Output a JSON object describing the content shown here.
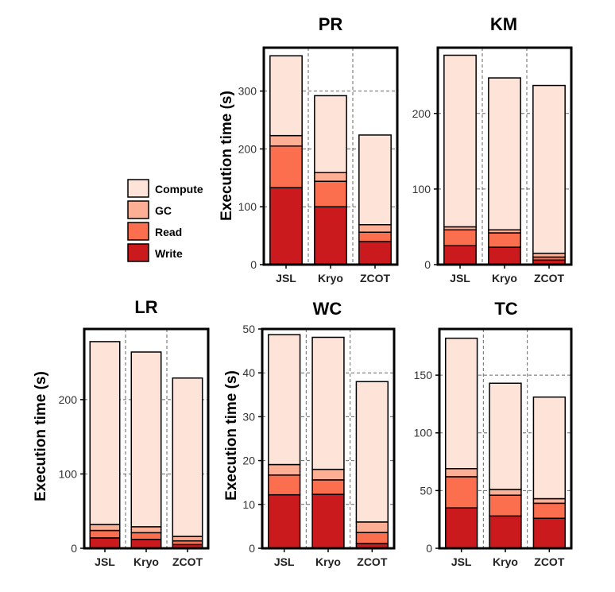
{
  "colors": {
    "Compute": "#fee3d8",
    "GC": "#fcaf94",
    "Read": "#fb6e4e",
    "Write": "#cb1a1d"
  },
  "legend": [
    "Compute",
    "GC",
    "Read",
    "Write"
  ],
  "y_label": "Execution time (s)",
  "chart_data": [
    {
      "type": "bar",
      "stacked": true,
      "title": "PR",
      "categories": [
        "JSL",
        "Kryo",
        "ZCOT"
      ],
      "ylabel": "Execution time (s)",
      "ylim": [
        0,
        375
      ],
      "yticks": [
        0,
        100,
        200,
        300
      ],
      "series": [
        {
          "name": "Write",
          "values": [
            133,
            100,
            40
          ]
        },
        {
          "name": "Read",
          "values": [
            72,
            44,
            16
          ]
        },
        {
          "name": "GC",
          "values": [
            18,
            15,
            13
          ]
        },
        {
          "name": "Compute",
          "values": [
            138,
            133,
            155
          ]
        }
      ]
    },
    {
      "type": "bar",
      "stacked": true,
      "title": "KM",
      "categories": [
        "JSL",
        "Kryo",
        "ZCOT"
      ],
      "ylabel": "",
      "ylim": [
        0,
        287
      ],
      "yticks": [
        0,
        100,
        200
      ],
      "series": [
        {
          "name": "Write",
          "values": [
            25,
            23,
            6
          ]
        },
        {
          "name": "Read",
          "values": [
            21,
            19,
            4
          ]
        },
        {
          "name": "GC",
          "values": [
            4,
            4,
            5
          ]
        },
        {
          "name": "Compute",
          "values": [
            227,
            201,
            222
          ]
        }
      ]
    },
    {
      "type": "bar",
      "stacked": true,
      "title": "LR",
      "categories": [
        "JSL",
        "Kryo",
        "ZCOT"
      ],
      "ylabel": "Execution time (s)",
      "ylim": [
        0,
        295
      ],
      "yticks": [
        0,
        100,
        200
      ],
      "series": [
        {
          "name": "Write",
          "values": [
            14,
            12,
            5
          ]
        },
        {
          "name": "Read",
          "values": [
            10,
            9,
            5
          ]
        },
        {
          "name": "GC",
          "values": [
            8,
            8,
            6
          ]
        },
        {
          "name": "Compute",
          "values": [
            246,
            235,
            213
          ]
        }
      ]
    },
    {
      "type": "bar",
      "stacked": true,
      "title": "WC",
      "categories": [
        "JSL",
        "Kryo",
        "ZCOT"
      ],
      "ylabel": "Execution time (s)",
      "ylim": [
        0,
        50
      ],
      "yticks": [
        0,
        10,
        20,
        30,
        40,
        50
      ],
      "series": [
        {
          "name": "Write",
          "values": [
            12.2,
            12.3,
            1.1
          ]
        },
        {
          "name": "Read",
          "values": [
            4.5,
            3.3,
            2.5
          ]
        },
        {
          "name": "GC",
          "values": [
            2.4,
            2.4,
            2.4
          ]
        },
        {
          "name": "Compute",
          "values": [
            29.6,
            30.1,
            32.0
          ]
        }
      ]
    },
    {
      "type": "bar",
      "stacked": true,
      "title": "TC",
      "categories": [
        "JSL",
        "Kryo",
        "ZCOT"
      ],
      "ylabel": "",
      "ylim": [
        0,
        190
      ],
      "yticks": [
        0,
        50,
        100,
        150
      ],
      "series": [
        {
          "name": "Write",
          "values": [
            35,
            28,
            26
          ]
        },
        {
          "name": "Read",
          "values": [
            27,
            18,
            13
          ]
        },
        {
          "name": "GC",
          "values": [
            7,
            5,
            4
          ]
        },
        {
          "name": "Compute",
          "values": [
            113,
            92,
            88
          ]
        }
      ]
    }
  ]
}
